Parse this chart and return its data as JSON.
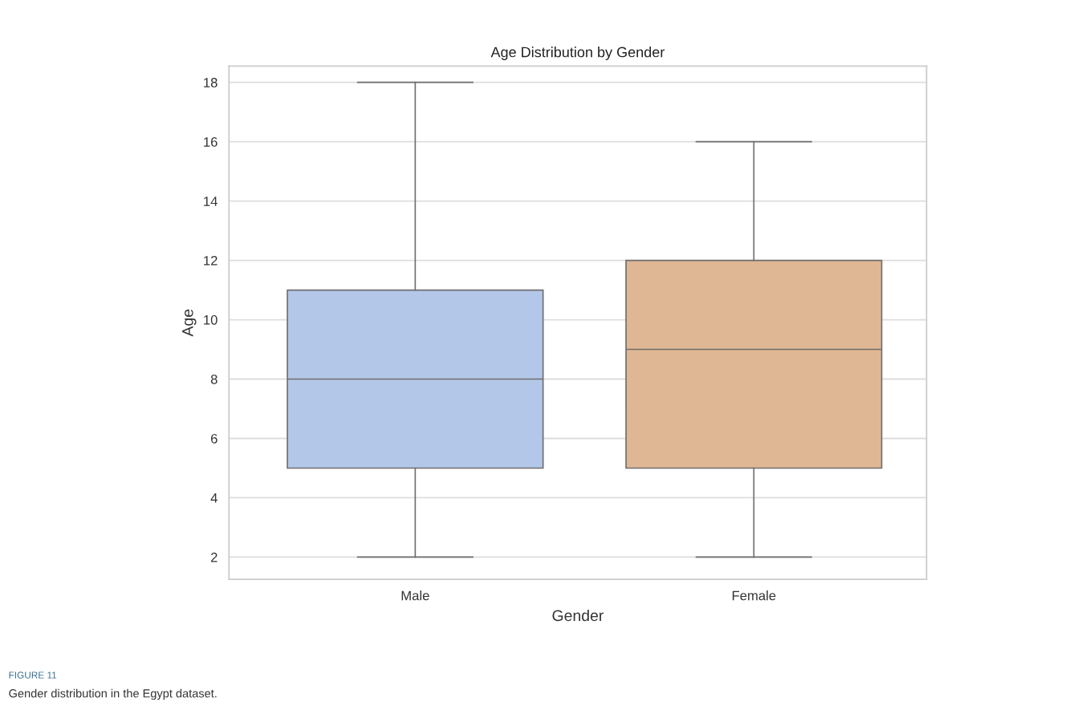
{
  "chart_data": {
    "type": "box",
    "title": "Age Distribution by Gender",
    "xlabel": "Gender",
    "ylabel": "Age",
    "categories": [
      "Male",
      "Female"
    ],
    "boxes": [
      {
        "low": 2,
        "q1": 5,
        "median": 8,
        "q3": 11,
        "high": 18
      },
      {
        "low": 2,
        "q1": 5,
        "median": 9,
        "q3": 12,
        "high": 16
      }
    ],
    "colors": [
      "#b3c7e8",
      "#e0b794"
    ],
    "ylim": [
      1.25,
      18.55
    ],
    "yticks": [
      2,
      4,
      6,
      8,
      10,
      12,
      14,
      16,
      18
    ],
    "grid": "y",
    "annotations": [
      "FIGURE 11",
      "Gender distribution in the Egypt dataset."
    ]
  }
}
